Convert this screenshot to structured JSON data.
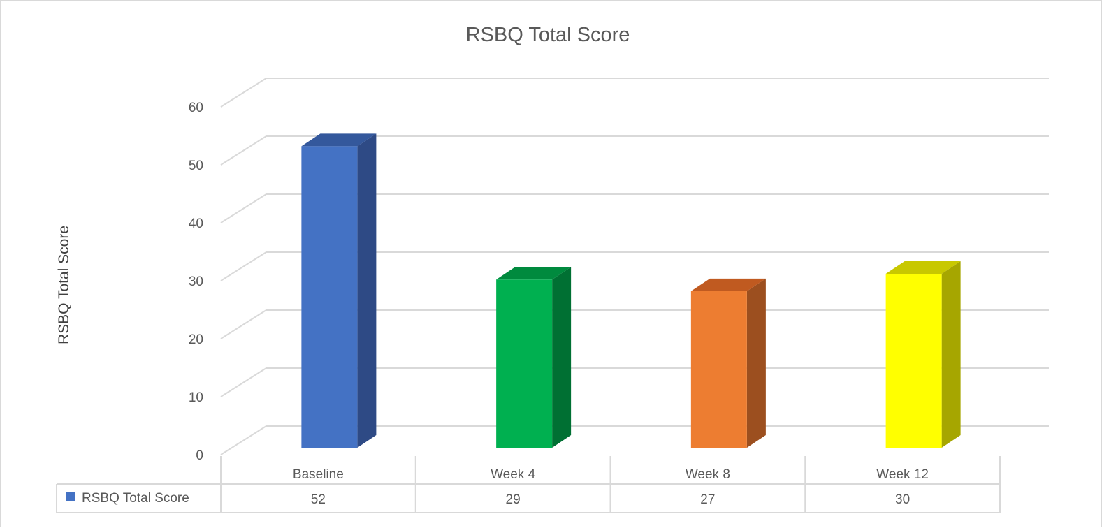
{
  "chart_data": {
    "type": "bar",
    "style": "3d-column",
    "title": "RSBQ Total Score",
    "xlabel": "",
    "ylabel": "RSBQ Total Score",
    "ylim": [
      0,
      60
    ],
    "yticks": [
      0,
      10,
      20,
      30,
      40,
      50,
      60
    ],
    "grid": true,
    "legend": "data-table",
    "categories": [
      "Baseline",
      "Week 4",
      "Week 8",
      "Week 12"
    ],
    "series": [
      {
        "name": "RSBQ Total Score",
        "values": [
          52,
          29,
          27,
          30
        ],
        "color": "#4472c4",
        "point_colors": [
          "#4472c4",
          "#00b050",
          "#ed7d31",
          "#ffff00"
        ],
        "point_side_colors": [
          "#2e4a85",
          "#007033",
          "#9c4f1f",
          "#a6a600"
        ],
        "point_top_colors": [
          "#34589c",
          "#008a3e",
          "#c05a20",
          "#c8c800"
        ]
      }
    ],
    "table": {
      "row_label": "RSBQ Total Score",
      "values": [
        "52",
        "29",
        "27",
        "30"
      ]
    }
  }
}
